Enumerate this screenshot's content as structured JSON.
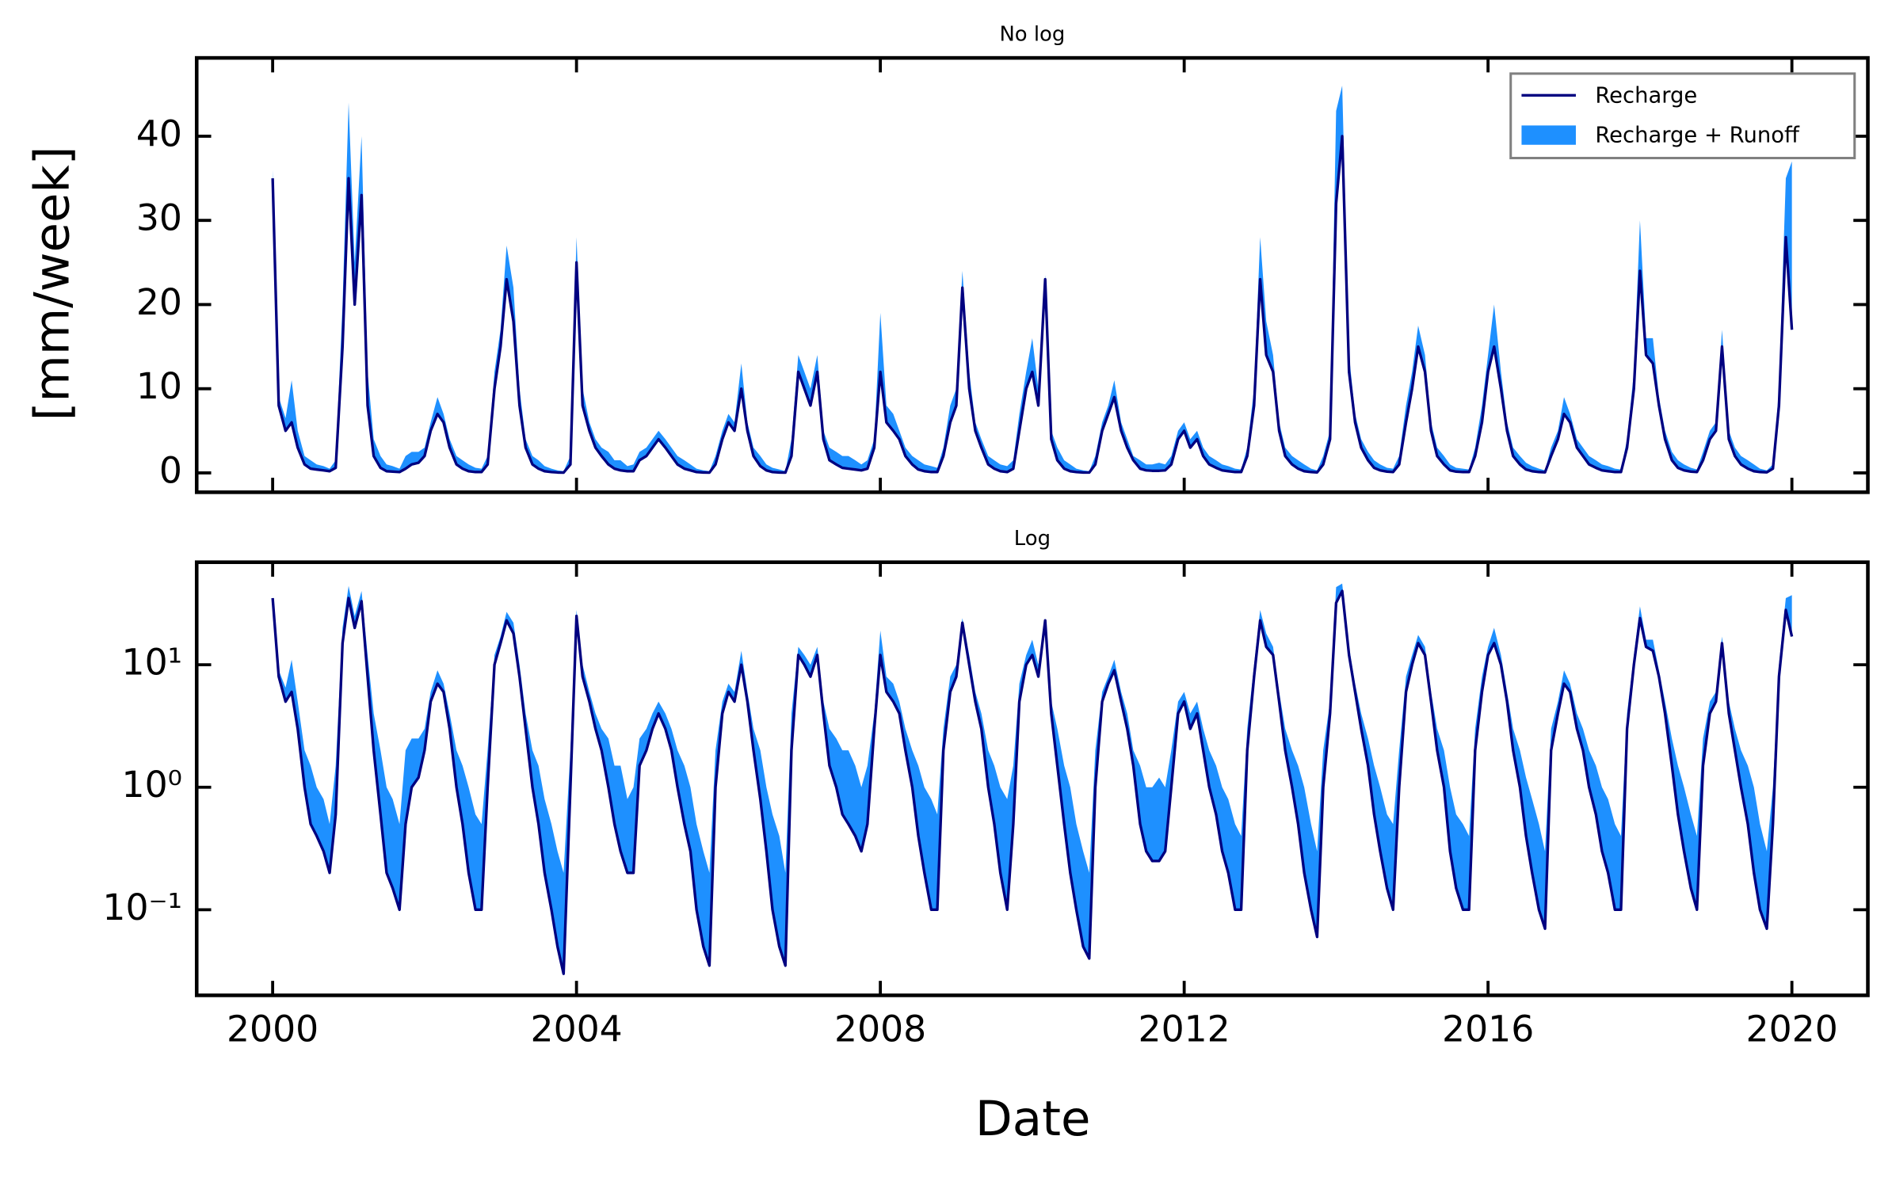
{
  "chart_data": {
    "type": "line",
    "xlabel": "Date",
    "ylabel": "[mm/week]",
    "xlim": [
      1999,
      2021
    ],
    "xticks": [
      2000,
      2004,
      2008,
      2012,
      2016,
      2020
    ],
    "legend": "upper right",
    "panels": [
      {
        "title": "No log",
        "log": false,
        "ylim": [
          -2.3,
          49.3
        ],
        "yticks": [
          0,
          10,
          20,
          30,
          40
        ]
      },
      {
        "title": "Log",
        "log": true,
        "ylim": [
          0.02,
          68.7
        ],
        "yticks": [
          {
            "value": 0.1,
            "label": "10⁻¹"
          },
          {
            "value": 1,
            "label": "10⁰"
          },
          {
            "value": 10,
            "label": "10¹"
          }
        ]
      }
    ],
    "x": [
      2000,
      2000.08,
      2000.17,
      2000.25,
      2000.33,
      2000.42,
      2000.5,
      2000.58,
      2000.67,
      2000.75,
      2000.83,
      2000.92,
      2001,
      2001.08,
      2001.17,
      2001.25,
      2001.33,
      2001.42,
      2001.5,
      2001.58,
      2001.67,
      2001.75,
      2001.83,
      2001.92,
      2002,
      2002.08,
      2002.17,
      2002.25,
      2002.33,
      2002.42,
      2002.5,
      2002.58,
      2002.67,
      2002.75,
      2002.83,
      2002.92,
      2003,
      2003.08,
      2003.17,
      2003.25,
      2003.33,
      2003.42,
      2003.5,
      2003.58,
      2003.67,
      2003.75,
      2003.83,
      2003.92,
      2004,
      2004.08,
      2004.17,
      2004.25,
      2004.33,
      2004.42,
      2004.5,
      2004.58,
      2004.67,
      2004.75,
      2004.83,
      2004.92,
      2005,
      2005.08,
      2005.17,
      2005.25,
      2005.33,
      2005.42,
      2005.5,
      2005.58,
      2005.67,
      2005.75,
      2005.83,
      2005.92,
      2006,
      2006.08,
      2006.17,
      2006.25,
      2006.33,
      2006.42,
      2006.5,
      2006.58,
      2006.67,
      2006.75,
      2006.83,
      2006.92,
      2007,
      2007.08,
      2007.17,
      2007.25,
      2007.33,
      2007.42,
      2007.5,
      2007.58,
      2007.67,
      2007.75,
      2007.83,
      2007.92,
      2008,
      2008.08,
      2008.17,
      2008.25,
      2008.33,
      2008.42,
      2008.5,
      2008.58,
      2008.67,
      2008.75,
      2008.83,
      2008.92,
      2009,
      2009.08,
      2009.17,
      2009.25,
      2009.33,
      2009.42,
      2009.5,
      2009.58,
      2009.67,
      2009.75,
      2009.83,
      2009.92,
      2010,
      2010.08,
      2010.17,
      2010.25,
      2010.33,
      2010.42,
      2010.5,
      2010.58,
      2010.67,
      2010.75,
      2010.83,
      2010.92,
      2011,
      2011.08,
      2011.17,
      2011.25,
      2011.33,
      2011.42,
      2011.5,
      2011.58,
      2011.67,
      2011.75,
      2011.83,
      2011.92,
      2012,
      2012.08,
      2012.17,
      2012.25,
      2012.33,
      2012.42,
      2012.5,
      2012.58,
      2012.67,
      2012.75,
      2012.83,
      2012.92,
      2013,
      2013.08,
      2013.17,
      2013.25,
      2013.33,
      2013.42,
      2013.5,
      2013.58,
      2013.67,
      2013.75,
      2013.83,
      2013.92,
      2014,
      2014.08,
      2014.17,
      2014.25,
      2014.33,
      2014.42,
      2014.5,
      2014.58,
      2014.67,
      2014.75,
      2014.83,
      2014.92,
      2015,
      2015.08,
      2015.17,
      2015.25,
      2015.33,
      2015.42,
      2015.5,
      2015.58,
      2015.67,
      2015.75,
      2015.83,
      2015.92,
      2016,
      2016.08,
      2016.17,
      2016.25,
      2016.33,
      2016.42,
      2016.5,
      2016.58,
      2016.67,
      2016.75,
      2016.83,
      2016.92,
      2017,
      2017.08,
      2017.17,
      2017.25,
      2017.33,
      2017.42,
      2017.5,
      2017.58,
      2017.67,
      2017.75,
      2017.83,
      2017.92,
      2018,
      2018.08,
      2018.17,
      2018.25,
      2018.33,
      2018.42,
      2018.5,
      2018.58,
      2018.67,
      2018.75,
      2018.83,
      2018.92,
      2019,
      2019.08,
      2019.17,
      2019.25,
      2019.33,
      2019.42,
      2019.5,
      2019.58,
      2019.67,
      2019.75,
      2019.83,
      2019.92,
      2020
    ],
    "series": [
      {
        "name": "Recharge",
        "color": "#000080",
        "values": [
          35,
          8,
          5,
          6,
          3,
          1,
          0.5,
          0.4,
          0.3,
          0.2,
          0.6,
          15,
          35,
          20,
          33,
          8,
          2,
          0.6,
          0.2,
          0.15,
          0.1,
          0.5,
          1,
          1.2,
          2,
          5,
          7,
          6,
          3,
          1,
          0.5,
          0.2,
          0.1,
          0.1,
          1,
          10,
          15,
          23,
          18,
          8,
          3,
          1,
          0.5,
          0.2,
          0.1,
          0.05,
          0.03,
          1,
          25,
          8,
          5,
          3,
          2,
          1,
          0.5,
          0.3,
          0.2,
          0.2,
          1.5,
          2,
          3,
          4,
          3,
          2,
          1,
          0.5,
          0.3,
          0.1,
          0.05,
          0.035,
          1,
          4,
          6,
          5,
          10,
          5,
          2,
          0.8,
          0.3,
          0.1,
          0.05,
          0.035,
          2,
          12,
          10,
          8,
          12,
          4,
          1.5,
          1,
          0.6,
          0.5,
          0.4,
          0.3,
          0.5,
          3,
          12,
          6,
          5,
          4,
          2,
          1,
          0.4,
          0.2,
          0.1,
          0.1,
          2,
          6,
          8,
          22,
          10,
          5,
          3,
          1,
          0.5,
          0.2,
          0.1,
          0.5,
          5,
          10,
          12,
          8,
          23,
          4,
          1.5,
          0.5,
          0.2,
          0.1,
          0.05,
          0.04,
          1,
          5,
          7,
          9,
          5,
          3,
          1.5,
          0.5,
          0.3,
          0.25,
          0.25,
          0.3,
          1,
          4,
          5,
          3,
          4,
          2,
          1,
          0.6,
          0.3,
          0.2,
          0.1,
          0.1,
          2,
          8,
          23,
          14,
          12,
          5,
          2,
          1,
          0.5,
          0.2,
          0.1,
          0.06,
          1,
          4,
          32,
          40,
          12,
          6,
          3,
          1.5,
          0.6,
          0.3,
          0.15,
          0.1,
          1,
          6,
          10,
          15,
          12,
          5,
          2,
          1,
          0.3,
          0.15,
          0.1,
          0.1,
          2,
          6,
          12,
          15,
          10,
          5,
          2,
          1,
          0.4,
          0.2,
          0.1,
          0.07,
          2,
          4,
          7,
          6,
          3,
          2,
          1,
          0.6,
          0.3,
          0.2,
          0.1,
          0.1,
          3,
          10,
          24,
          14,
          13,
          8,
          4,
          1.5,
          0.6,
          0.3,
          0.15,
          0.1,
          1.5,
          4,
          5,
          15,
          4,
          2,
          1,
          0.5,
          0.2,
          0.1,
          0.07,
          0.5,
          8,
          28,
          17
        ]
      },
      {
        "name": "Recharge + Runoff",
        "color": "#1e90ff",
        "values": [
          36,
          9,
          6.5,
          11,
          5,
          2,
          1.5,
          1,
          0.8,
          0.5,
          1.5,
          20,
          44,
          25,
          40,
          12,
          4,
          2,
          1,
          0.8,
          0.5,
          2,
          2.5,
          2.5,
          3,
          6,
          9,
          7,
          4,
          2,
          1.5,
          1,
          0.6,
          0.5,
          2,
          12,
          17,
          27,
          22,
          10,
          4,
          2,
          1.5,
          0.8,
          0.5,
          0.3,
          0.2,
          2,
          28,
          10,
          6,
          4,
          3,
          2.5,
          1.5,
          1.5,
          0.8,
          1,
          2.5,
          3,
          4,
          5,
          4,
          3,
          2,
          1.5,
          1,
          0.5,
          0.3,
          0.2,
          2,
          5,
          7,
          6,
          13,
          6,
          3,
          2,
          1,
          0.6,
          0.4,
          0.2,
          4,
          14,
          12,
          10,
          14,
          5,
          3,
          2.5,
          2,
          2,
          1.5,
          1,
          1.5,
          4,
          19,
          8,
          7,
          5,
          3,
          2,
          1.5,
          1,
          0.8,
          0.6,
          3,
          8,
          10,
          24,
          12,
          6,
          4,
          2,
          1.5,
          1,
          0.8,
          1.5,
          7,
          12,
          16,
          10,
          23.5,
          5,
          3,
          1.5,
          1,
          0.5,
          0.3,
          0.2,
          2,
          6,
          8,
          11,
          6,
          4,
          2,
          1.5,
          1,
          1,
          1.2,
          1,
          2,
          5,
          6,
          4,
          5,
          3,
          2,
          1.5,
          1,
          0.8,
          0.5,
          0.4,
          3,
          10,
          28,
          18,
          14,
          6,
          3,
          2,
          1.5,
          1,
          0.5,
          0.3,
          2,
          5,
          43,
          46,
          14,
          7,
          4,
          2.5,
          1.5,
          1,
          0.6,
          0.5,
          2,
          8,
          12,
          17.5,
          14,
          6,
          3,
          2,
          1,
          0.6,
          0.5,
          0.4,
          3,
          8,
          14,
          20,
          12,
          6,
          3,
          2,
          1.2,
          0.8,
          0.5,
          0.3,
          3,
          5,
          9,
          7,
          4,
          3,
          2,
          1.5,
          1,
          0.8,
          0.5,
          0.4,
          4,
          12,
          30,
          16,
          16,
          9,
          5,
          2.5,
          1.5,
          1,
          0.6,
          0.4,
          2.5,
          5,
          6,
          17,
          5,
          3,
          2,
          1.5,
          1,
          0.5,
          0.3,
          1,
          10,
          35,
          37
        ]
      }
    ]
  }
}
